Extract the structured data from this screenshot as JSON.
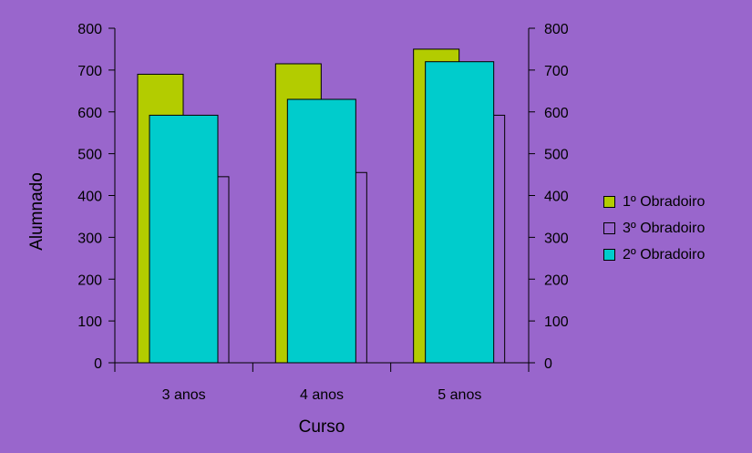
{
  "colors": {
    "background": "#9966cc",
    "series_1": "#b3cc00",
    "series_3": "#9966cc",
    "series_2": "#00cccc"
  },
  "chart_data": {
    "type": "bar",
    "categories": [
      "3 anos",
      "4 anos",
      "5 anos"
    ],
    "series": [
      {
        "name": "1º Obradoiro",
        "values": [
          690,
          715,
          750
        ],
        "color": "#b3cc00"
      },
      {
        "name": "3º Obradoiro",
        "values": [
          445,
          455,
          592
        ],
        "color": "#9966cc"
      },
      {
        "name": "2º Obradoiro",
        "values": [
          592,
          630,
          720
        ],
        "color": "#00cccc"
      }
    ],
    "xlabel": "Curso",
    "ylabel": "Alumnado",
    "ylim": [
      0,
      800
    ],
    "yticks": [
      "0",
      "100",
      "200",
      "300",
      "400",
      "500",
      "600",
      "700",
      "800"
    ],
    "secondary_yticks": [
      "0",
      "100",
      "200",
      "300",
      "400",
      "500",
      "600",
      "700",
      "800"
    ],
    "grid": false,
    "legend_position": "right"
  }
}
